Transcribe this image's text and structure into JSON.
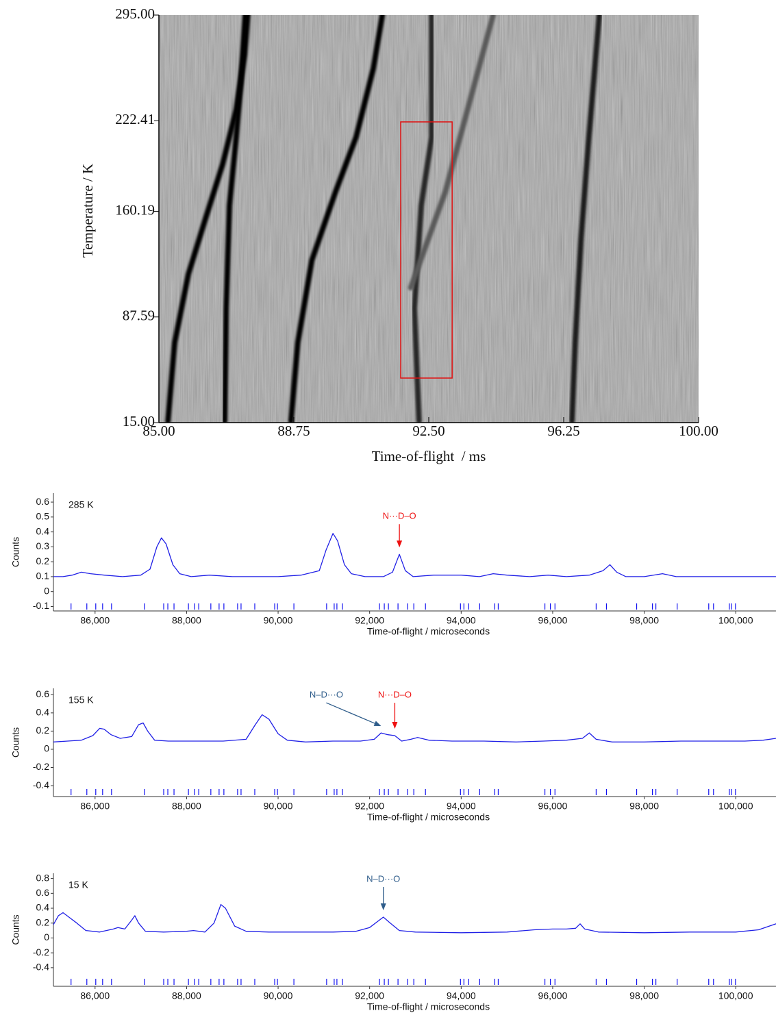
{
  "chart_data": [
    {
      "type": "heatmap",
      "xlabel": "Time-of-flight  / ms",
      "ylabel": "Temperature / K",
      "xlim": [
        85,
        100
      ],
      "ylim": [
        15,
        295
      ],
      "xticks": [
        {
          "value": 85,
          "label": "85.00"
        },
        {
          "value": 88.75,
          "label": "88.75"
        },
        {
          "value": 92.5,
          "label": "92.50"
        },
        {
          "value": 96.25,
          "label": "96.25"
        },
        {
          "value": 100,
          "label": "100.00"
        }
      ],
      "yticks": [
        {
          "value": 15,
          "label": "15.00"
        },
        87.59,
        160.19,
        222.41,
        {
          "value": 295,
          "label": "295.00"
        }
      ],
      "highlight": {
        "x": [
          91.72,
          93.15
        ],
        "y": [
          45.6,
          221.6
        ],
        "color": "#e01010"
      },
      "series": [
        {
          "color": "#000000",
          "x": [
            85.25,
            85.44,
            85.82,
            86.29,
            86.77,
            87.15,
            87.38,
            87.47
          ],
          "values": [
            15.9,
            70.1,
            117.1,
            154.8,
            192.4,
            230.1,
            267.7,
            295
          ]
        },
        {
          "color": "#000000",
          "x": [
            86.83,
            86.87,
            86.96,
            87.15,
            87.28,
            87.4
          ],
          "values": [
            15.9,
            93.6,
            164.2,
            211.2,
            248.9,
            295
          ]
        },
        {
          "color": "#000000",
          "x": [
            88.67,
            88.86,
            89.25,
            89.91,
            90.48,
            90.96,
            91.21
          ],
          "values": [
            15.9,
            70.1,
            126.5,
            173.6,
            211.2,
            258.3,
            295
          ]
        },
        {
          "color": "#262626",
          "x": [
            92.23,
            92.1,
            92.29,
            92.58,
            92.58
          ],
          "values": [
            15.9,
            93.6,
            164.2,
            211.2,
            295
          ]
        },
        {
          "color": "#5a5a5a",
          "x": [
            92.0,
            92.96,
            94.29
          ],
          "values": [
            107.7,
            173.6,
            295
          ]
        },
        {
          "color": "#1a1a1a",
          "x": [
            96.48,
            96.57,
            96.73,
            96.95,
            97.24
          ],
          "values": [
            15.9,
            70.1,
            140.6,
            211.2,
            295
          ]
        }
      ]
    },
    {
      "type": "line",
      "label": "285 K",
      "ylabel": "Counts",
      "xlabel": "Time-of-flight / microseconds",
      "xlim": [
        85090,
        100880
      ],
      "ylim": [
        -0.13,
        0.66
      ],
      "color": "#2020e6",
      "xticks": [
        {
          "value": 86000,
          "label": "86,000"
        },
        {
          "value": 88000,
          "label": "88,000"
        },
        {
          "value": 90000,
          "label": "90,000"
        },
        {
          "value": 92000,
          "label": "92,000"
        },
        {
          "value": 94000,
          "label": "94,000"
        },
        {
          "value": 96000,
          "label": "96,000"
        },
        {
          "value": 98000,
          "label": "98,000"
        },
        {
          "value": 100000,
          "label": "100,000"
        }
      ],
      "yticks": [
        -0.1,
        0,
        0.1,
        0.2,
        0.3,
        0.4,
        0.5,
        0.6
      ],
      "x": [
        85090,
        85300,
        85500,
        85700,
        85900,
        86200,
        86600,
        87000,
        87200,
        87350,
        87450,
        87550,
        87700,
        87850,
        88100,
        88500,
        89000,
        89500,
        90000,
        90500,
        90900,
        91050,
        91200,
        91300,
        91450,
        91600,
        91900,
        92300,
        92500,
        92650,
        92780,
        92950,
        93400,
        94000,
        94400,
        94700,
        95000,
        95500,
        95900,
        96300,
        96800,
        97100,
        97250,
        97400,
        97600,
        98000,
        98400,
        98700,
        99200,
        99700,
        100200,
        100500,
        100880
      ],
      "values": [
        0.1,
        0.1,
        0.11,
        0.13,
        0.12,
        0.11,
        0.1,
        0.11,
        0.15,
        0.3,
        0.36,
        0.32,
        0.18,
        0.12,
        0.1,
        0.11,
        0.1,
        0.1,
        0.1,
        0.11,
        0.14,
        0.28,
        0.39,
        0.34,
        0.18,
        0.12,
        0.1,
        0.1,
        0.13,
        0.25,
        0.14,
        0.1,
        0.11,
        0.11,
        0.1,
        0.12,
        0.11,
        0.1,
        0.11,
        0.1,
        0.11,
        0.14,
        0.18,
        0.13,
        0.1,
        0.1,
        0.12,
        0.1,
        0.1,
        0.1,
        0.1,
        0.1,
        0.1
      ],
      "reflection_color": "#1010f0",
      "reflections": [
        85475,
        85820,
        86015,
        86165,
        86360,
        87080,
        87500,
        87590,
        87725,
        88040,
        88175,
        88265,
        88530,
        88710,
        88815,
        89115,
        89190,
        89490,
        89925,
        89985,
        90345,
        91060,
        91225,
        91285,
        91405,
        92215,
        92320,
        92410,
        92620,
        92830,
        92965,
        93220,
        93985,
        94060,
        94165,
        94405,
        94735,
        94810,
        95830,
        95950,
        96050,
        96950,
        97175,
        97835,
        98180,
        98255,
        98720,
        99410,
        99515,
        99860,
        99905,
        99995
      ],
      "annotations": [
        {
          "text": "N···D–O",
          "x": 92650,
          "y": 0.25,
          "color": "#ee1111"
        }
      ]
    },
    {
      "type": "line",
      "label": "155 K",
      "ylabel": "Counts",
      "xlabel": "Time-of-flight / microseconds",
      "xlim": [
        85090,
        100880
      ],
      "ylim": [
        -0.52,
        0.67
      ],
      "color": "#2020e6",
      "xticks": [
        {
          "value": 86000,
          "label": "86,000"
        },
        {
          "value": 88000,
          "label": "88,000"
        },
        {
          "value": 90000,
          "label": "90,000"
        },
        {
          "value": 92000,
          "label": "92,000"
        },
        {
          "value": 94000,
          "label": "94,000"
        },
        {
          "value": 96000,
          "label": "96,000"
        },
        {
          "value": 98000,
          "label": "98,000"
        },
        {
          "value": 100000,
          "label": "100,000"
        }
      ],
      "yticks": [
        -0.4,
        -0.2,
        0,
        0.2,
        0.4,
        0.6
      ],
      "x": [
        85090,
        85400,
        85700,
        85950,
        86100,
        86200,
        86350,
        86550,
        86800,
        86950,
        87050,
        87150,
        87300,
        87600,
        88200,
        88800,
        89300,
        89500,
        89650,
        89800,
        90000,
        90200,
        90600,
        91200,
        91800,
        92100,
        92250,
        92400,
        92550,
        92700,
        92900,
        93050,
        93300,
        93800,
        94500,
        95200,
        95800,
        96300,
        96650,
        96800,
        96950,
        97300,
        98000,
        98800,
        99500,
        100200,
        100600,
        100880
      ],
      "values": [
        0.08,
        0.09,
        0.1,
        0.15,
        0.23,
        0.22,
        0.16,
        0.12,
        0.14,
        0.27,
        0.29,
        0.2,
        0.1,
        0.09,
        0.09,
        0.09,
        0.11,
        0.27,
        0.38,
        0.33,
        0.17,
        0.1,
        0.08,
        0.09,
        0.09,
        0.11,
        0.18,
        0.16,
        0.15,
        0.09,
        0.11,
        0.13,
        0.1,
        0.09,
        0.09,
        0.08,
        0.09,
        0.1,
        0.12,
        0.18,
        0.11,
        0.08,
        0.08,
        0.09,
        0.09,
        0.09,
        0.1,
        0.12
      ],
      "reflection_color": "#1010f0",
      "reflections": [
        85475,
        85820,
        86015,
        86165,
        86360,
        87080,
        87500,
        87590,
        87725,
        88040,
        88175,
        88265,
        88530,
        88710,
        88815,
        89115,
        89190,
        89490,
        89925,
        89985,
        90345,
        91060,
        91225,
        91285,
        91405,
        92215,
        92320,
        92410,
        92620,
        92830,
        92965,
        93220,
        93985,
        94060,
        94165,
        94405,
        94735,
        94810,
        95830,
        95950,
        96050,
        96950,
        97175,
        97835,
        98180,
        98255,
        98720,
        99410,
        99515,
        99860,
        99905,
        99995
      ],
      "annotations": [
        {
          "text": "N–D···O",
          "x": 92250,
          "y": 0.18,
          "color": "#2e5c8a"
        },
        {
          "text": "N···D–O",
          "x": 92550,
          "y": 0.15,
          "color": "#ee1111"
        }
      ]
    },
    {
      "type": "line",
      "label": "15 K",
      "ylabel": "Counts",
      "xlabel": "Time-of-flight / microseconds",
      "xlim": [
        85090,
        100880
      ],
      "ylim": [
        -0.65,
        0.87
      ],
      "color": "#2020e6",
      "xticks": [
        {
          "value": 86000,
          "label": "86,000"
        },
        {
          "value": 88000,
          "label": "88,000"
        },
        {
          "value": 90000,
          "label": "90,000"
        },
        {
          "value": 92000,
          "label": "92,000"
        },
        {
          "value": 94000,
          "label": "94,000"
        },
        {
          "value": 96000,
          "label": "96,000"
        },
        {
          "value": 98000,
          "label": "98,000"
        },
        {
          "value": 100000,
          "label": "100,000"
        }
      ],
      "yticks": [
        -0.4,
        -0.2,
        0,
        0.2,
        0.4,
        0.6,
        0.8
      ],
      "x": [
        85090,
        85200,
        85300,
        85450,
        85600,
        85800,
        86100,
        86400,
        86500,
        86650,
        86800,
        86870,
        86950,
        87100,
        87500,
        88000,
        88150,
        88400,
        88600,
        88750,
        88850,
        89050,
        89300,
        89800,
        90500,
        91200,
        91700,
        92000,
        92300,
        92450,
        92650,
        93000,
        94000,
        95000,
        95600,
        96000,
        96300,
        96500,
        96600,
        96700,
        97000,
        98000,
        99000,
        100000,
        100500,
        100880
      ],
      "values": [
        0.18,
        0.3,
        0.34,
        0.27,
        0.2,
        0.1,
        0.08,
        0.12,
        0.14,
        0.12,
        0.24,
        0.3,
        0.2,
        0.09,
        0.08,
        0.09,
        0.1,
        0.08,
        0.2,
        0.45,
        0.4,
        0.16,
        0.09,
        0.08,
        0.08,
        0.08,
        0.09,
        0.14,
        0.28,
        0.2,
        0.1,
        0.08,
        0.07,
        0.08,
        0.11,
        0.12,
        0.12,
        0.13,
        0.19,
        0.12,
        0.08,
        0.07,
        0.08,
        0.08,
        0.11,
        0.19
      ],
      "reflection_color": "#1010f0",
      "reflections": [
        85475,
        85820,
        86015,
        86165,
        86360,
        87080,
        87500,
        87590,
        87725,
        88040,
        88175,
        88265,
        88530,
        88710,
        88815,
        89115,
        89190,
        89490,
        89925,
        89985,
        90345,
        91060,
        91225,
        91285,
        91405,
        92215,
        92320,
        92410,
        92620,
        92830,
        92965,
        93220,
        93985,
        94060,
        94165,
        94405,
        94735,
        94810,
        95830,
        95950,
        96050,
        96950,
        97175,
        97835,
        98180,
        98255,
        98720,
        99410,
        99515,
        99860,
        99905,
        99995
      ],
      "annotations": [
        {
          "text": "N–D···O",
          "x": 92300,
          "y": 0.28,
          "color": "#2e5c8a"
        }
      ]
    }
  ]
}
